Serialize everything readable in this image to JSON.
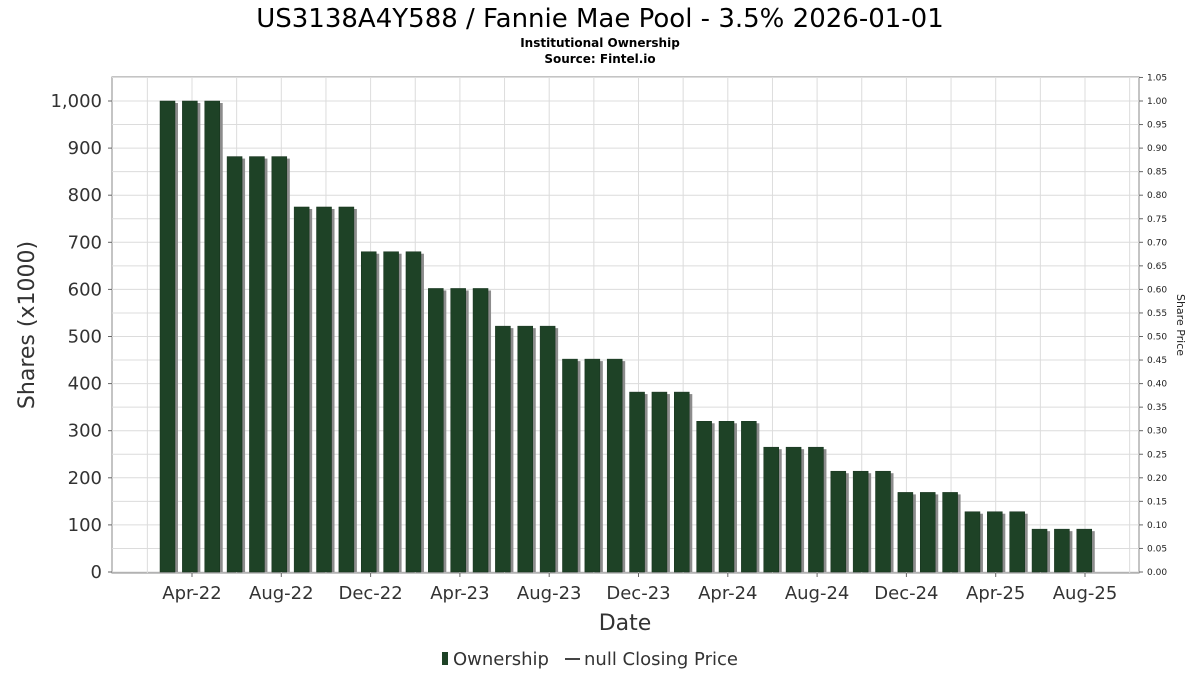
{
  "title": "US3138A4Y588 / Fannie Mae Pool - 3.5% 2026-01-01",
  "subtitle": "Institutional Ownership",
  "source": "Source: Fintel.io",
  "legend": {
    "ownership": "Ownership",
    "price": "null Closing Price"
  },
  "colors": {
    "bar": "#1e4226",
    "bar_shadow": "#8c8c8c",
    "grid": "#dcdcdc",
    "frame": "#888888"
  },
  "chart_data": {
    "type": "bar",
    "xlabel": "Date",
    "ylabel": "Shares (x1000)",
    "y2label": "Share Price",
    "ylim": [
      0,
      1050
    ],
    "y2lim": [
      0,
      1.05
    ],
    "yticks": [
      0,
      100,
      200,
      300,
      400,
      500,
      600,
      700,
      800,
      900,
      1000
    ],
    "ytick_labels": [
      "0",
      "100",
      "200",
      "300",
      "400",
      "500",
      "600",
      "700",
      "800",
      "900",
      "1,000"
    ],
    "y2ticks": [
      "0.00",
      "0.05",
      "0.10",
      "0.15",
      "0.20",
      "0.25",
      "0.30",
      "0.35",
      "0.40",
      "0.45",
      "0.50",
      "0.55",
      "0.60",
      "0.65",
      "0.70",
      "0.75",
      "0.80",
      "0.85",
      "0.90",
      "0.95",
      "1.00",
      "1.05"
    ],
    "xtick_labels": [
      "Apr-22",
      "Aug-22",
      "Dec-22",
      "Apr-23",
      "Aug-23",
      "Dec-23",
      "Apr-24",
      "Aug-24",
      "Dec-24",
      "Apr-25",
      "Aug-25"
    ],
    "grid": true,
    "legend_position": "bottom",
    "series": [
      {
        "name": "Ownership",
        "values": [
          1000,
          1000,
          1000,
          882,
          882,
          882,
          775,
          775,
          775,
          680,
          680,
          680,
          602,
          602,
          602,
          522,
          522,
          522,
          452,
          452,
          452,
          382,
          382,
          382,
          320,
          320,
          320,
          265,
          265,
          265,
          214,
          214,
          214,
          169,
          169,
          169,
          128,
          128,
          128,
          91,
          91,
          91
        ]
      }
    ]
  }
}
